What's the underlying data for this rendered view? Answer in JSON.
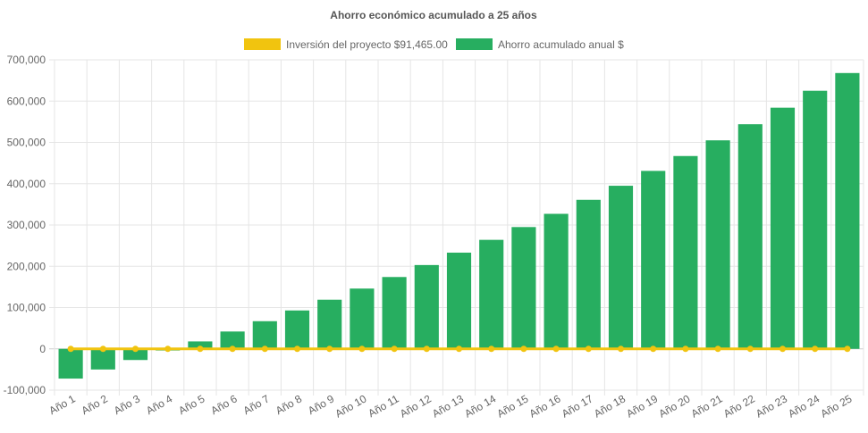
{
  "chart_data": {
    "type": "bar",
    "title": "Ahorro económico acumulado a 25 años",
    "categories": [
      "Año 1",
      "Año 2",
      "Año 3",
      "Año 4",
      "Año 5",
      "Año 6",
      "Año 7",
      "Año 8",
      "Año 9",
      "Año 10",
      "Año 11",
      "Año 12",
      "Año 13",
      "Año 14",
      "Año 15",
      "Año 16",
      "Año 17",
      "Año 18",
      "Año 19",
      "Año 20",
      "Año 21",
      "Año 22",
      "Año 23",
      "Año 24",
      "Año 25"
    ],
    "series": [
      {
        "name": "Inversión del proyecto $91,465.00",
        "type": "line",
        "color": "#f1c40f",
        "values": [
          0,
          0,
          0,
          0,
          0,
          0,
          0,
          0,
          0,
          0,
          0,
          0,
          0,
          0,
          0,
          0,
          0,
          0,
          0,
          0,
          0,
          0,
          0,
          0,
          0
        ]
      },
      {
        "name": "Ahorro acumulado anual $",
        "type": "bar",
        "color": "#27ae60",
        "values": [
          -72000,
          -50000,
          -27000,
          -4000,
          18000,
          42000,
          67000,
          93000,
          119000,
          146000,
          174000,
          203000,
          233000,
          264000,
          295000,
          327000,
          361000,
          395000,
          431000,
          467000,
          505000,
          544000,
          584000,
          625000,
          668000
        ]
      }
    ],
    "ylim": [
      -100000,
      700000
    ],
    "yticks": [
      -100000,
      0,
      100000,
      200000,
      300000,
      400000,
      500000,
      600000,
      700000
    ],
    "ytick_labels": [
      "-100,000",
      "0",
      "100,000",
      "200,000",
      "300,000",
      "400,000",
      "500,000",
      "600,000",
      "700,000"
    ],
    "grid": true,
    "legend_position": "top"
  }
}
